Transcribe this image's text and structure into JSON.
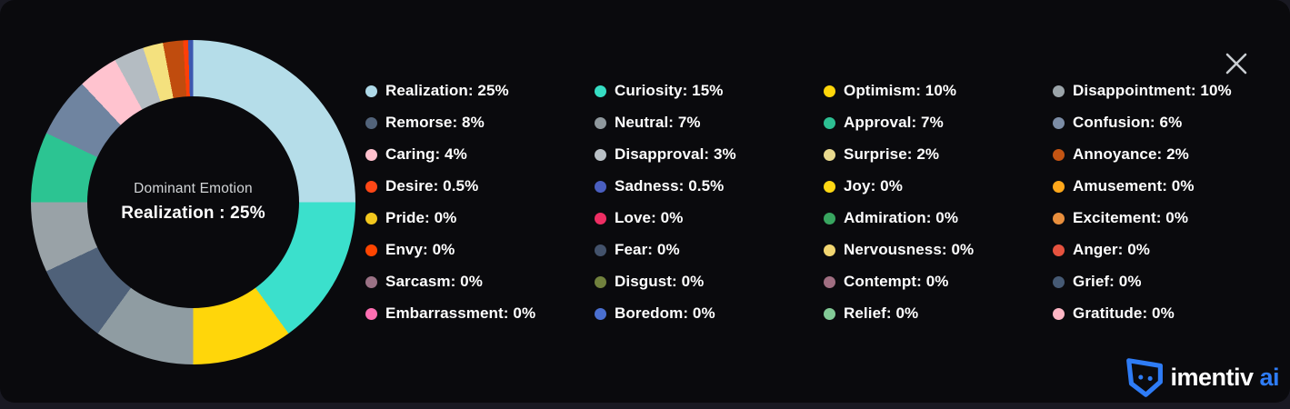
{
  "window": {
    "close_label": "close"
  },
  "chart_data": {
    "type": "pie",
    "variant": "donut",
    "title": "Dominant Emotion",
    "legend_position": "right",
    "center": {
      "label": "Dominant Emotion",
      "value_text": "Realization : 25%"
    },
    "segments_clockwise": [
      {
        "label": "Realization",
        "value": 25,
        "color": "#b5dde9"
      },
      {
        "label": "Curiosity",
        "value": 15,
        "color": "#3be0cc"
      },
      {
        "label": "Optimism",
        "value": 10,
        "color": "#ffd60a"
      },
      {
        "label": "Disappointment",
        "value": 10,
        "color": "#8f9ca2"
      },
      {
        "label": "Remorse",
        "value": 8,
        "color": "#4f6179"
      },
      {
        "label": "Neutral",
        "value": 7,
        "color": "#99a2a7"
      },
      {
        "label": "Approval",
        "value": 7,
        "color": "#2cc492"
      },
      {
        "label": "Confusion",
        "value": 6,
        "color": "#6f84a0"
      },
      {
        "label": "Caring",
        "value": 4,
        "color": "#ffc3cf"
      },
      {
        "label": "Disapproval",
        "value": 3,
        "color": "#b4bcc2"
      },
      {
        "label": "Surprise",
        "value": 2,
        "color": "#f4e17e"
      },
      {
        "label": "Annoyance",
        "value": 2,
        "color": "#c04c0e"
      },
      {
        "label": "Desire",
        "value": 0.5,
        "color": "#fd3f07"
      },
      {
        "label": "Sadness",
        "value": 0.5,
        "color": "#3d58b0"
      }
    ],
    "legend_columns": [
      [
        {
          "label": "Realization",
          "pct": "25%",
          "color": "#aed9e8"
        },
        {
          "label": "Remorse",
          "pct": "8%",
          "color": "#52637a"
        },
        {
          "label": "Caring",
          "pct": "4%",
          "color": "#ffc0cd"
        },
        {
          "label": "Desire",
          "pct": "0.5%",
          "color": "#ff4716"
        },
        {
          "label": "Pride",
          "pct": "0%",
          "color": "#f2c71d"
        },
        {
          "label": "Envy",
          "pct": "0%",
          "color": "#ff4500"
        },
        {
          "label": "Sarcasm",
          "pct": "0%",
          "color": "#9b7285"
        },
        {
          "label": "Embarrassment",
          "pct": "0%",
          "color": "#ff6fb2"
        }
      ],
      [
        {
          "label": "Curiosity",
          "pct": "15%",
          "color": "#36ddc3"
        },
        {
          "label": "Neutral",
          "pct": "7%",
          "color": "#8f989d"
        },
        {
          "label": "Disapproval",
          "pct": "3%",
          "color": "#bac1c6"
        },
        {
          "label": "Sadness",
          "pct": "0.5%",
          "color": "#4a5fc0"
        },
        {
          "label": "Love",
          "pct": "0%",
          "color": "#ee2e63"
        },
        {
          "label": "Fear",
          "pct": "0%",
          "color": "#43526b"
        },
        {
          "label": "Disgust",
          "pct": "0%",
          "color": "#71813d"
        },
        {
          "label": "Boredom",
          "pct": "0%",
          "color": "#4a6fd0"
        }
      ],
      [
        {
          "label": "Optimism",
          "pct": "10%",
          "color": "#ffd60a"
        },
        {
          "label": "Approval",
          "pct": "7%",
          "color": "#2dbf92"
        },
        {
          "label": "Surprise",
          "pct": "2%",
          "color": "#e9da8f"
        },
        {
          "label": "Joy",
          "pct": "0%",
          "color": "#ffd814"
        },
        {
          "label": "Admiration",
          "pct": "0%",
          "color": "#38a55f"
        },
        {
          "label": "Nervousness",
          "pct": "0%",
          "color": "#f2d671"
        },
        {
          "label": "Contempt",
          "pct": "0%",
          "color": "#a06e81"
        },
        {
          "label": "Relief",
          "pct": "0%",
          "color": "#82ca96"
        }
      ],
      [
        {
          "label": "Disappointment",
          "pct": "10%",
          "color": "#9ba4a9"
        },
        {
          "label": "Confusion",
          "pct": "6%",
          "color": "#7c8da6"
        },
        {
          "label": "Annoyance",
          "pct": "2%",
          "color": "#c35413"
        },
        {
          "label": "Amusement",
          "pct": "0%",
          "color": "#ffa81b"
        },
        {
          "label": "Excitement",
          "pct": "0%",
          "color": "#e98f3d"
        },
        {
          "label": "Anger",
          "pct": "0%",
          "color": "#e6533f"
        },
        {
          "label": "Grief",
          "pct": "0%",
          "color": "#465a74"
        },
        {
          "label": "Gratitude",
          "pct": "0%",
          "color": "#ffb7c5"
        }
      ]
    ]
  },
  "branding": {
    "name": "imentiv",
    "suffix": "ai",
    "accent_color": "#2e7cf6"
  }
}
